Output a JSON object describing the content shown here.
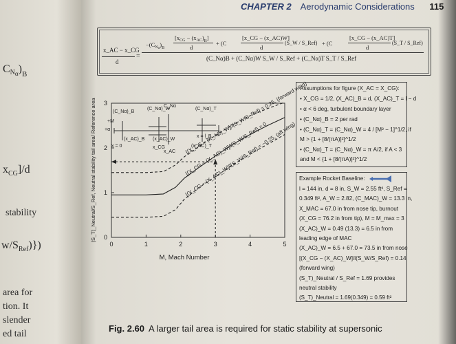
{
  "left_page": {
    "frags": [
      "C",
      "N",
      "α",
      ")",
      "B",
      "x",
      "CG",
      "]/d",
      "stability",
      "w",
      "/S",
      "Ref",
      ")})",
      "area for",
      "tion. It",
      "slender",
      "ed tail"
    ]
  },
  "header": {
    "chapter": "CHAPTER 2",
    "title": "Aerodynamic Considerations",
    "page": "115"
  },
  "equation": {
    "lhs": "xₐc − xᴄᴳ",
    "lhs_text": "x_AC − x_CG",
    "lhs_den": "d",
    "num_t1": "−(C",
    "num_t1b": "N",
    "num_t1c": "α",
    "num_t1d": ")",
    "num_t1e": "B",
    "frac1_num": "[x",
    "frac1_num_b": "CG",
    "frac1_num_c": " − (x",
    "frac1_num_d": "AC",
    "frac1_num_e": ")",
    "frac1_num_f": "B",
    "frac1_num_g": "]",
    "frac_den": "d",
    "plus_w": "+ (C",
    "plus_t": "+ (C",
    "frac2_num": "[x_CG − (x_AC)W]",
    "frac2_tail": "(S_W / S_Ref)",
    "frac3_num": "[x_CG − (x_AC)T]",
    "frac3_tail": "(S_T / S_Ref)",
    "denominator": "(C_Nα)B + (C_Nα)W S_W / S_Ref + (C_Nα)T S_T / S_Ref"
  },
  "assumptions": {
    "title": "Assumptions for figure (X_AC = X_CG):",
    "lines": [
      "• X_CG = 1/2, (X_AC)_B = d, (X_AC)_T = l − d",
      "• α < 6 deg, turbulent boundary layer",
      "• (C_Nα)_B = 2 per rad",
      "• (C_Nα)_T = (C_Nα)_W = 4 / [M² − 1]^1/2, if",
      "  M > {1 + [8/(πA)]²}^1/2",
      "• (C_Nα)_T = (C_Nα)_W = π A/2, if A < 3",
      "  and M < {1 + [8/(πA)]²}^1/2"
    ]
  },
  "baseline": {
    "title": "Example Rocket Baseline:",
    "lines": [
      "l = 144 in, d = 8 in, S_W = 2.55 ft², S_Ref =",
      "0.349 ft², A_W = 2.82, (C_MAC)_W = 13.3 in,",
      "X_MAC = 67.0 in from nose tip, burnout",
      "(X_CG = 76.2 in from tip), M = M_max = 3",
      "(X_AC)_W = 0.49 (13.3) = 6.5 in from",
      "leading edge of MAC",
      "(X_AC)_W = 6.5 + 67.0 = 73.5 in from nose",
      "[(X_CG − (X_AC)_W]/l(S_W/S_Ref) = 0.14",
      "(forward wing)",
      "(S_T)_Neutral / S_Ref = 1.69 provides",
      "neutral stability",
      "(S_T)_Neutral = 1.69(0.349) = 0.59 ft²"
    ]
  },
  "chart_data": {
    "type": "line",
    "xlabel": "M, Mach Number",
    "ylabel": "(S_T)_Neutral/S_Ref, Neutral stability tail area/ Reference area",
    "xlim": [
      0,
      5
    ],
    "ylim": [
      0,
      3
    ],
    "x_ticks": [
      "0",
      "1",
      "2",
      "3",
      "4",
      "5"
    ],
    "y_ticks": [
      "0",
      "1",
      "2",
      "3"
    ],
    "series": [
      {
        "name": "[(X_CG − (X_AC)_W]/l(S_W/S_Ref) = 0.25, (forward wing)",
        "style": "dashed",
        "x": [
          0,
          1.0,
          1.5,
          1.85,
          2.1,
          2.5,
          3.0,
          3.5,
          4.0,
          4.5,
          5.0
        ],
        "y": [
          1.45,
          1.45,
          1.47,
          1.62,
          1.8,
          2.02,
          2.28,
          2.52,
          2.72,
          2.88,
          3.02
        ]
      },
      {
        "name": "[(X_CG − (X_AC)_W]/l(S_W/S_Ref) = 0",
        "style": "solid",
        "x": [
          0,
          1.0,
          1.5,
          1.85,
          2.1,
          2.5,
          3.0,
          3.5,
          4.0,
          4.5,
          5.0
        ],
        "y": [
          0.95,
          0.95,
          0.97,
          1.12,
          1.32,
          1.55,
          1.82,
          2.08,
          2.3,
          2.5,
          2.68
        ]
      },
      {
        "name": "[(X_CG − (X_AC)_W]/l(S_W/S_Ref) = −0.25, (aft wing)",
        "style": "dashed",
        "x": [
          0,
          1.0,
          1.5,
          1.85,
          2.1,
          2.5,
          3.0,
          3.5,
          4.0,
          4.5,
          5.0
        ],
        "y": [
          0.45,
          0.45,
          0.47,
          0.62,
          0.85,
          1.1,
          1.36,
          1.62,
          1.86,
          2.08,
          2.3
        ]
      }
    ],
    "annotation": {
      "x": 3,
      "y": 1.69
    },
    "inset_labels": [
      "(C_Nα)_B",
      "(C_Nα)_W",
      "C_Nα",
      "(C_Nα)_T",
      "+M",
      "+α",
      "x = 0",
      "(x_AC)_B",
      "(x_AC)_W",
      "x_CG",
      "x_AC",
      "(x_AC)_T",
      "x = l_B"
    ]
  },
  "caption": {
    "label": "Fig. 2.60",
    "text": "A larger tail area is required for static stability at supersonic"
  }
}
